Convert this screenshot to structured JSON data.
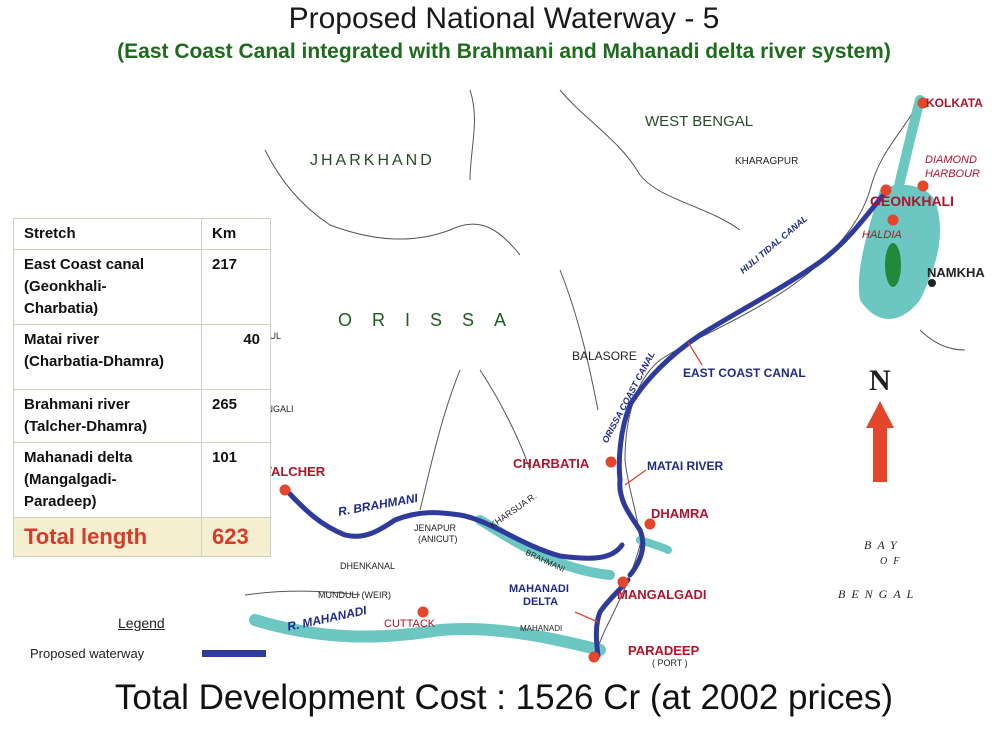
{
  "title": "Proposed National Waterway - 5",
  "subtitle": "(East Coast Canal integrated with Brahmani and Mahanadi delta river system)",
  "footer": "Total Development Cost : 1526 Cr (at 2002 prices)",
  "regions": {
    "jharkhand": "JHARKHAND",
    "west_bengal": "WEST BENGAL",
    "orissa": "ORISSA",
    "bay": "BAY",
    "of": "OF",
    "bengal": "BENGAL"
  },
  "places": {
    "kolkata": "KOLKATA",
    "diamond_harbour_1": "DIAMOND",
    "diamond_harbour_2": "HARBOUR",
    "geonkhali": "GEONKHALI",
    "haldia": "HALDIA",
    "namkhana": "NAMKHA",
    "kharagpur": "KHARAGPUR",
    "balasore": "BALASORE",
    "charbatia": "CHARBATIA",
    "dhamra": "DHAMRA",
    "talcher": "TALCHER",
    "mangalgadi": "MANGALGADI",
    "paradeep": "PARADEEP",
    "port": "( PORT )",
    "cuttack": "CUTTACK",
    "jenapur": "JENAPUR",
    "anicut": "(ANICUT)",
    "mundali": "MUNDULI (WEIR)",
    "dhenkanal": "DHENKANAL",
    "angul": "ANGUL",
    "rengali": "RENGALI",
    "mahanadi_delta_1": "MAHANADI",
    "mahanadi_delta_2": "DELTA"
  },
  "waterways": {
    "east_coast_canal": "EAST COAST CANAL",
    "matai_river": "MATAI RIVER",
    "hijli_tidal_canal": "HIJLI TIDAL CANAL",
    "orissa_coast_canal": "ORISSA COAST CANAL",
    "r_brahmani": "R. BRAHMANI",
    "r_mahanadi": "R. MAHANADI",
    "kharsua": "KHARSUA R.",
    "brahmani_small": "BRAHMANI",
    "mahanadi_small": "MAHANADI"
  },
  "north_label": "N",
  "table": {
    "headers": [
      "Stretch",
      "Km"
    ],
    "rows": [
      {
        "stretch": [
          "East Coast canal",
          "(Geonkhali-",
          "Charbatia)"
        ],
        "km": "217"
      },
      {
        "stretch": [
          "Matai river",
          "(Charbatia-Dhamra)"
        ],
        "km": "40"
      },
      {
        "stretch": [
          "Brahmani river",
          "(Talcher-Dhamra)"
        ],
        "km": "265"
      },
      {
        "stretch": [
          "Mahanadi delta",
          "(Mangalgadi-",
          "Paradeep)"
        ],
        "km": "101"
      }
    ],
    "total_label": "Total length",
    "total_value": "623"
  },
  "legend": {
    "title": "Legend",
    "item": "Proposed waterway"
  },
  "colors": {
    "waterway": "#2f3b9c",
    "river_fill": "#6cc7c2",
    "city_dot": "#e2462b",
    "arrow": "#e2462b",
    "title_green": "#1e6b1e"
  }
}
